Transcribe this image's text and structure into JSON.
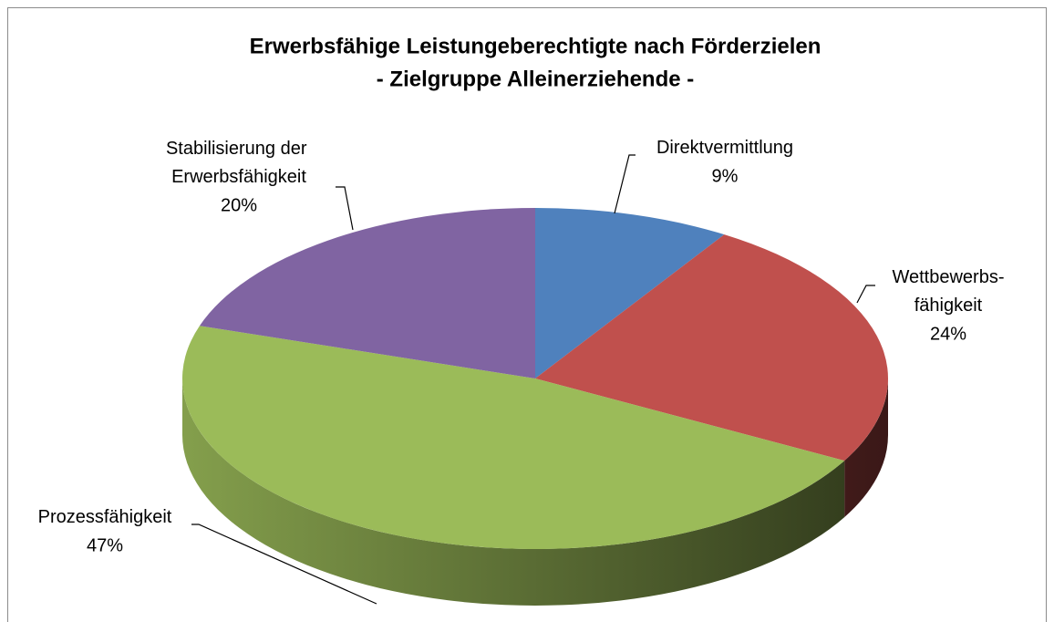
{
  "chart_data": {
    "type": "pie",
    "title": "Erwerbsfähige Leistungeberechtigte nach Förderzielen",
    "subtitle": "- Zielgruppe Alleinerziehende -",
    "categories": [
      "Direktvermittlung",
      "Wettbewerbs-fähigkeit",
      "Prozessfähigkeit",
      "Stabilisierung der Erwerbsfähigkeit"
    ],
    "values": [
      9,
      24,
      47,
      20
    ],
    "value_labels": [
      "9%",
      "24%",
      "47%",
      "20%"
    ],
    "colors": [
      "#4f81bd",
      "#c0504d",
      "#9bbb59",
      "#8064a2"
    ]
  }
}
